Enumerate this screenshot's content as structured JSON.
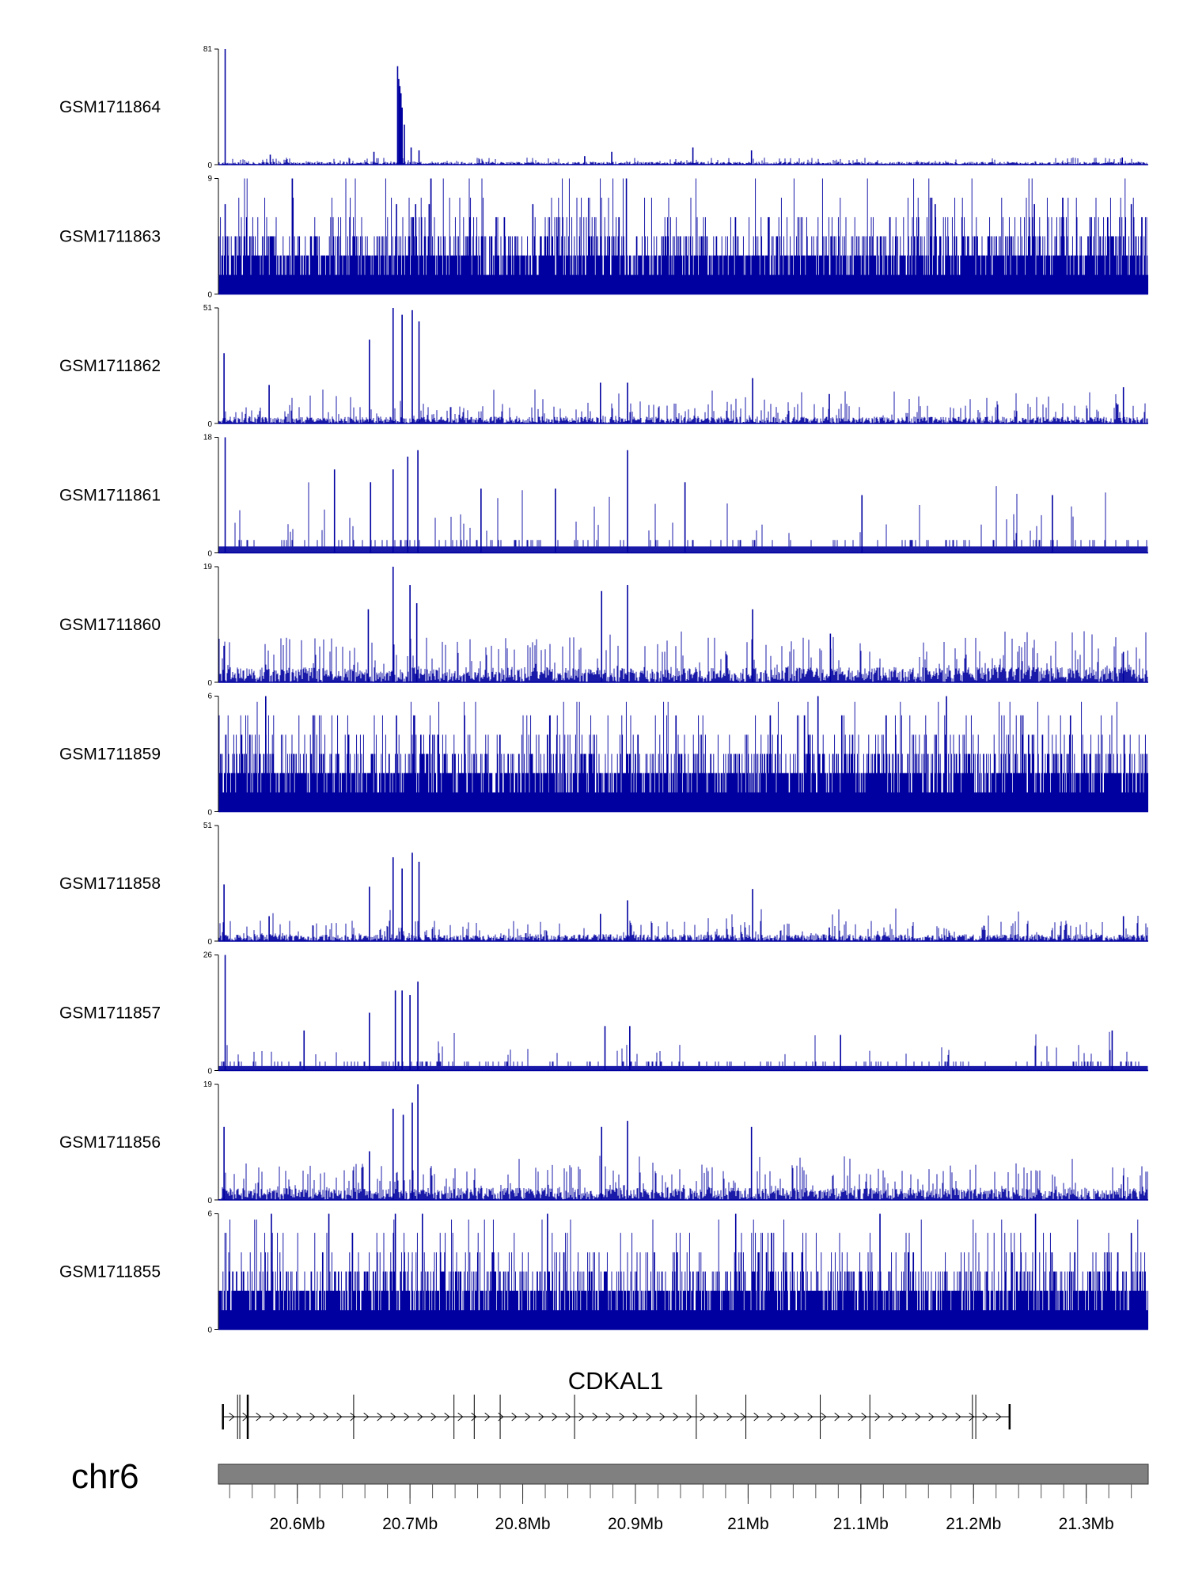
{
  "chart_data": {
    "type": "bar",
    "title": "",
    "xlabel": "",
    "ylabel": "",
    "color": "#0000a0",
    "region": {
      "chromosome": "chr6",
      "xlim_mb": [
        20.53,
        21.355
      ]
    },
    "x_ticks_mb": [
      20.6,
      20.7,
      20.8,
      20.9,
      21.0,
      21.1,
      21.2,
      21.3
    ],
    "x_tick_labels": [
      "20.6Mb",
      "20.7Mb",
      "20.8Mb",
      "20.9Mb",
      "21Mb",
      "21.1Mb",
      "21.2Mb",
      "21.3Mb"
    ],
    "tracks": [
      {
        "name": "GSM1711864",
        "ymax": 81,
        "ymin": 0,
        "baseline": 2,
        "profile": "peak",
        "peaks": [
          [
            20.536,
            81
          ],
          [
            20.689,
            69
          ],
          [
            20.69,
            60
          ],
          [
            20.691,
            55
          ],
          [
            20.692,
            50
          ],
          [
            20.693,
            40
          ],
          [
            20.695,
            28
          ],
          [
            20.701,
            12
          ],
          [
            20.708,
            10
          ],
          [
            20.668,
            9
          ],
          [
            20.576,
            7
          ],
          [
            20.879,
            9
          ],
          [
            20.855,
            6
          ],
          [
            20.951,
            12
          ],
          [
            21.003,
            10
          ],
          [
            21.332,
            5
          ]
        ]
      },
      {
        "name": "GSM1711863",
        "ymax": 9,
        "ymin": 0,
        "baseline": 2,
        "profile": "noisy",
        "peaks": [
          [
            20.536,
            7
          ],
          [
            20.892,
            9
          ],
          [
            20.688,
            7
          ],
          [
            20.705,
            7
          ],
          [
            20.717,
            7
          ],
          [
            20.809,
            7
          ],
          [
            21.166,
            7
          ],
          [
            21.254,
            7
          ],
          [
            21.34,
            7
          ]
        ]
      },
      {
        "name": "GSM1711862",
        "ymax": 51,
        "ymin": 0,
        "baseline": 3,
        "profile": "sparse",
        "peaks": [
          [
            20.535,
            31
          ],
          [
            20.664,
            37
          ],
          [
            20.685,
            51
          ],
          [
            20.693,
            48
          ],
          [
            20.702,
            50
          ],
          [
            20.708,
            45
          ],
          [
            20.575,
            17
          ],
          [
            20.869,
            18
          ],
          [
            20.893,
            18
          ],
          [
            21.004,
            20
          ],
          [
            21.072,
            13
          ],
          [
            21.333,
            16
          ]
        ]
      },
      {
        "name": "GSM1711861",
        "ymax": 18,
        "ymin": 0,
        "baseline": 2,
        "profile": "blocky",
        "peaks": [
          [
            20.536,
            18
          ],
          [
            20.633,
            13
          ],
          [
            20.665,
            11
          ],
          [
            20.685,
            13
          ],
          [
            20.698,
            15
          ],
          [
            20.707,
            16
          ],
          [
            20.893,
            16
          ],
          [
            20.763,
            10
          ],
          [
            20.829,
            10
          ],
          [
            20.944,
            11
          ],
          [
            21.101,
            9
          ],
          [
            21.27,
            9
          ]
        ]
      },
      {
        "name": "GSM1711860",
        "ymax": 19,
        "ymin": 0,
        "baseline": 2.5,
        "profile": "sparse",
        "peaks": [
          [
            20.535,
            6
          ],
          [
            20.663,
            12
          ],
          [
            20.685,
            19
          ],
          [
            20.7,
            16
          ],
          [
            20.706,
            13
          ],
          [
            20.87,
            15
          ],
          [
            20.893,
            16
          ],
          [
            21.004,
            12
          ],
          [
            21.073,
            8
          ],
          [
            21.333,
            5
          ]
        ]
      },
      {
        "name": "GSM1711859",
        "ymax": 6,
        "ymin": 0,
        "baseline": 2,
        "profile": "noisy",
        "peaks": [
          [
            20.572,
            6
          ],
          [
            20.688,
            5
          ],
          [
            20.704,
            5
          ],
          [
            21.062,
            6
          ],
          [
            21.176,
            6
          ],
          [
            20.824,
            5
          ],
          [
            20.936,
            5
          ],
          [
            21.286,
            5
          ]
        ]
      },
      {
        "name": "GSM1711858",
        "ymax": 51,
        "ymin": 0,
        "baseline": 3,
        "profile": "sparse",
        "peaks": [
          [
            20.535,
            25
          ],
          [
            20.664,
            24
          ],
          [
            20.685,
            37
          ],
          [
            20.693,
            32
          ],
          [
            20.702,
            39
          ],
          [
            20.708,
            35
          ],
          [
            20.575,
            11
          ],
          [
            20.869,
            12
          ],
          [
            20.893,
            18
          ],
          [
            21.004,
            23
          ],
          [
            21.072,
            6
          ],
          [
            21.333,
            11
          ]
        ]
      },
      {
        "name": "GSM1711857",
        "ymax": 26,
        "ymin": 0,
        "baseline": 2,
        "profile": "blocky",
        "peaks": [
          [
            20.536,
            26
          ],
          [
            20.664,
            13
          ],
          [
            20.687,
            18
          ],
          [
            20.693,
            18
          ],
          [
            20.7,
            17
          ],
          [
            20.707,
            20
          ],
          [
            20.873,
            10
          ],
          [
            20.895,
            10
          ],
          [
            21.082,
            8
          ],
          [
            21.323,
            9
          ],
          [
            20.606,
            9
          ]
        ]
      },
      {
        "name": "GSM1711856",
        "ymax": 19,
        "ymin": 0,
        "baseline": 2,
        "profile": "sparse",
        "peaks": [
          [
            20.535,
            12
          ],
          [
            20.664,
            8
          ],
          [
            20.685,
            15
          ],
          [
            20.694,
            14
          ],
          [
            20.702,
            16
          ],
          [
            20.707,
            19
          ],
          [
            20.87,
            12
          ],
          [
            20.893,
            13
          ],
          [
            21.003,
            12
          ],
          [
            21.333,
            4
          ]
        ]
      },
      {
        "name": "GSM1711855",
        "ymax": 6,
        "ymin": 0,
        "baseline": 2,
        "profile": "noisy",
        "peaks": [
          [
            20.577,
            6
          ],
          [
            20.628,
            6
          ],
          [
            20.687,
            6
          ],
          [
            20.711,
            6
          ],
          [
            20.822,
            6
          ],
          [
            20.989,
            6
          ],
          [
            21.117,
            6
          ],
          [
            21.255,
            6
          ],
          [
            21.34,
            5
          ]
        ]
      }
    ],
    "gene": {
      "name": "CDKAL1",
      "start_mb": 20.534,
      "end_mb": 21.232,
      "strand": "+",
      "exons_mb": [
        20.534,
        20.547,
        20.549,
        20.556,
        20.65,
        20.739,
        20.757,
        20.78,
        20.846,
        20.954,
        20.998,
        21.064,
        21.108,
        21.199,
        21.202,
        21.232
      ]
    }
  }
}
